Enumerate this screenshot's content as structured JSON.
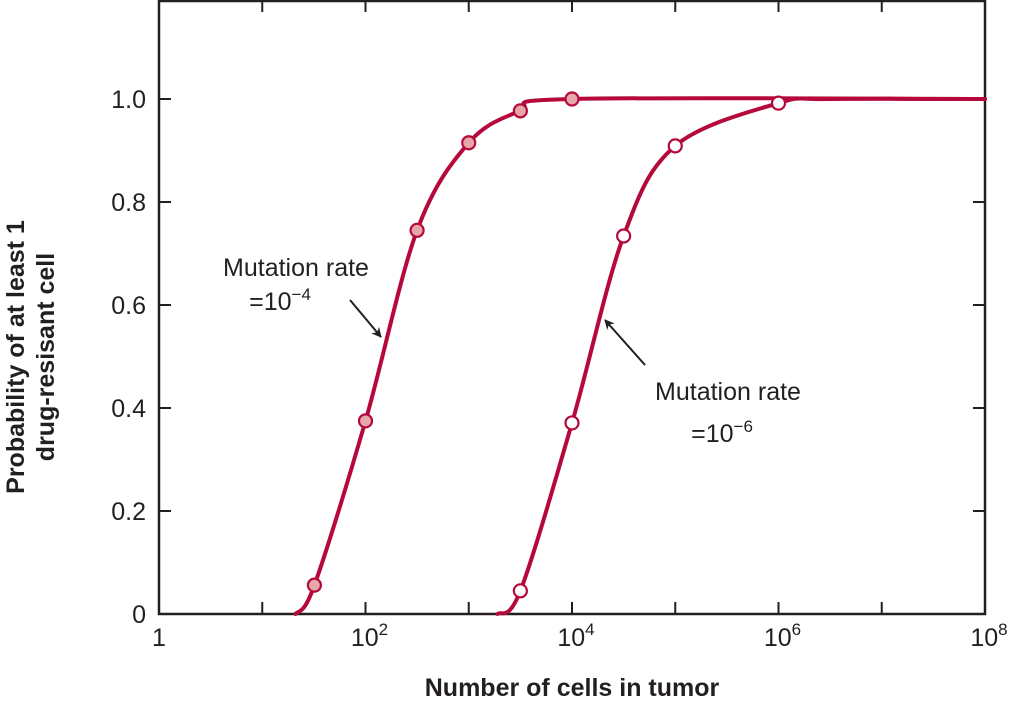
{
  "chart_data": {
    "type": "line",
    "title": "",
    "xlabel": "Number of cells in tumor",
    "ylabel_lines": [
      "Probability of at least 1",
      "drug-resisant cell"
    ],
    "xscale": "log10",
    "xlim": [
      1,
      100000000
    ],
    "ylim": [
      0,
      1.2
    ],
    "grid": false,
    "x_ticks": [
      {
        "value": 1,
        "base": "1",
        "exp": ""
      },
      {
        "value": 100,
        "base": "10",
        "exp": "2"
      },
      {
        "value": 10000,
        "base": "10",
        "exp": "4"
      },
      {
        "value": 1000000,
        "base": "10",
        "exp": "6"
      },
      {
        "value": 100000000,
        "base": "10",
        "exp": "8"
      }
    ],
    "x_minor_ticks": [
      10,
      1000,
      100000,
      10000000
    ],
    "y_ticks": [
      {
        "value": 0,
        "label": "0"
      },
      {
        "value": 0.2,
        "label": "0.2"
      },
      {
        "value": 0.4,
        "label": "0.4"
      },
      {
        "value": 0.6,
        "label": "0.6"
      },
      {
        "value": 0.8,
        "label": "0.8"
      },
      {
        "value": 1.0,
        "label": "1.0"
      }
    ],
    "series": [
      {
        "name": "Mutation rate =10^-4",
        "marker": "filled-circle",
        "color": "#b5093c",
        "marker_fill": "#e6a6aa",
        "curve_start_x": 21,
        "x": [
          32,
          100,
          316,
          1000,
          3162,
          10000
        ],
        "y": [
          0.056,
          0.375,
          0.745,
          0.915,
          0.977,
          1.0
        ]
      },
      {
        "name": "Mutation rate =10^-6",
        "marker": "open-circle",
        "color": "#b5093c",
        "marker_fill": "#ffffff",
        "curve_start_x": 1900,
        "x": [
          3162,
          10000,
          31623,
          100000,
          1000000
        ],
        "y": [
          0.045,
          0.371,
          0.734,
          0.909,
          0.992
        ]
      }
    ],
    "annotations": [
      {
        "line1": "Mutation rate",
        "line2_base": "=10",
        "line2_exp": "−4",
        "points_to_series": 0
      },
      {
        "line1": "Mutation rate",
        "line2_base": "=10",
        "line2_exp": "−6",
        "points_to_series": 1
      }
    ]
  }
}
